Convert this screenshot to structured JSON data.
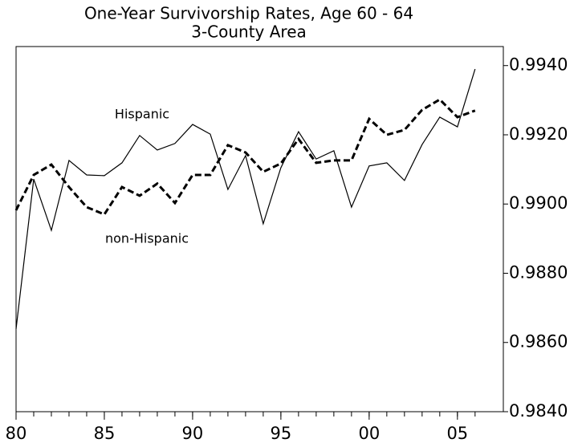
{
  "chart_data": {
    "type": "line",
    "title": "One-Year Survivorship Rates, Age 60 - 64",
    "subtitle": "3-County Area",
    "x": [
      1980,
      1981,
      1982,
      1983,
      1984,
      1985,
      1986,
      1987,
      1988,
      1989,
      1990,
      1991,
      1992,
      1993,
      1994,
      1995,
      1996,
      1997,
      1998,
      1999,
      2000,
      2001,
      2002,
      2003,
      2004,
      2005,
      2006
    ],
    "series": [
      {
        "name": "Hispanic",
        "color": "#000000",
        "dash": "solid",
        "values": [
          0.98639,
          0.99072,
          0.98924,
          0.99126,
          0.99084,
          0.99082,
          0.99119,
          0.99198,
          0.99156,
          0.99175,
          0.9923,
          0.99202,
          0.99042,
          0.9914,
          0.98943,
          0.99105,
          0.99209,
          0.9913,
          0.99154,
          0.98991,
          0.9911,
          0.99119,
          0.99068,
          0.99172,
          0.99251,
          0.99223,
          0.9939
        ]
      },
      {
        "name": "non-Hispanic",
        "color": "#000000",
        "dash": "dashed",
        "values": [
          0.98982,
          0.99084,
          0.99114,
          0.99049,
          0.98991,
          0.9897,
          0.99049,
          0.99024,
          0.99059,
          0.99003,
          0.99084,
          0.99084,
          0.9917,
          0.99149,
          0.99093,
          0.99117,
          0.99188,
          0.99119,
          0.99126,
          0.99126,
          0.99246,
          0.992,
          0.99214,
          0.99272,
          0.99302,
          0.99251,
          0.9927
        ]
      }
    ],
    "xlim": [
      1980,
      2007.6
    ],
    "xticks": [
      {
        "value": 1980,
        "label": "80"
      },
      {
        "value": 1985,
        "label": "85"
      },
      {
        "value": 1990,
        "label": "90"
      },
      {
        "value": 1995,
        "label": "95"
      },
      {
        "value": 2000,
        "label": "00"
      },
      {
        "value": 2005,
        "label": "05"
      }
    ],
    "ylim": [
      0.984,
      0.99455
    ],
    "yticks": [
      {
        "value": 0.984,
        "label": "0.9840"
      },
      {
        "value": 0.986,
        "label": "0.9860"
      },
      {
        "value": 0.988,
        "label": "0.9880"
      },
      {
        "value": 0.99,
        "label": "0.9900"
      },
      {
        "value": 0.992,
        "label": "0.9920"
      },
      {
        "value": 0.994,
        "label": "0.9940"
      }
    ],
    "y_axis_side": "right",
    "grid": false
  }
}
